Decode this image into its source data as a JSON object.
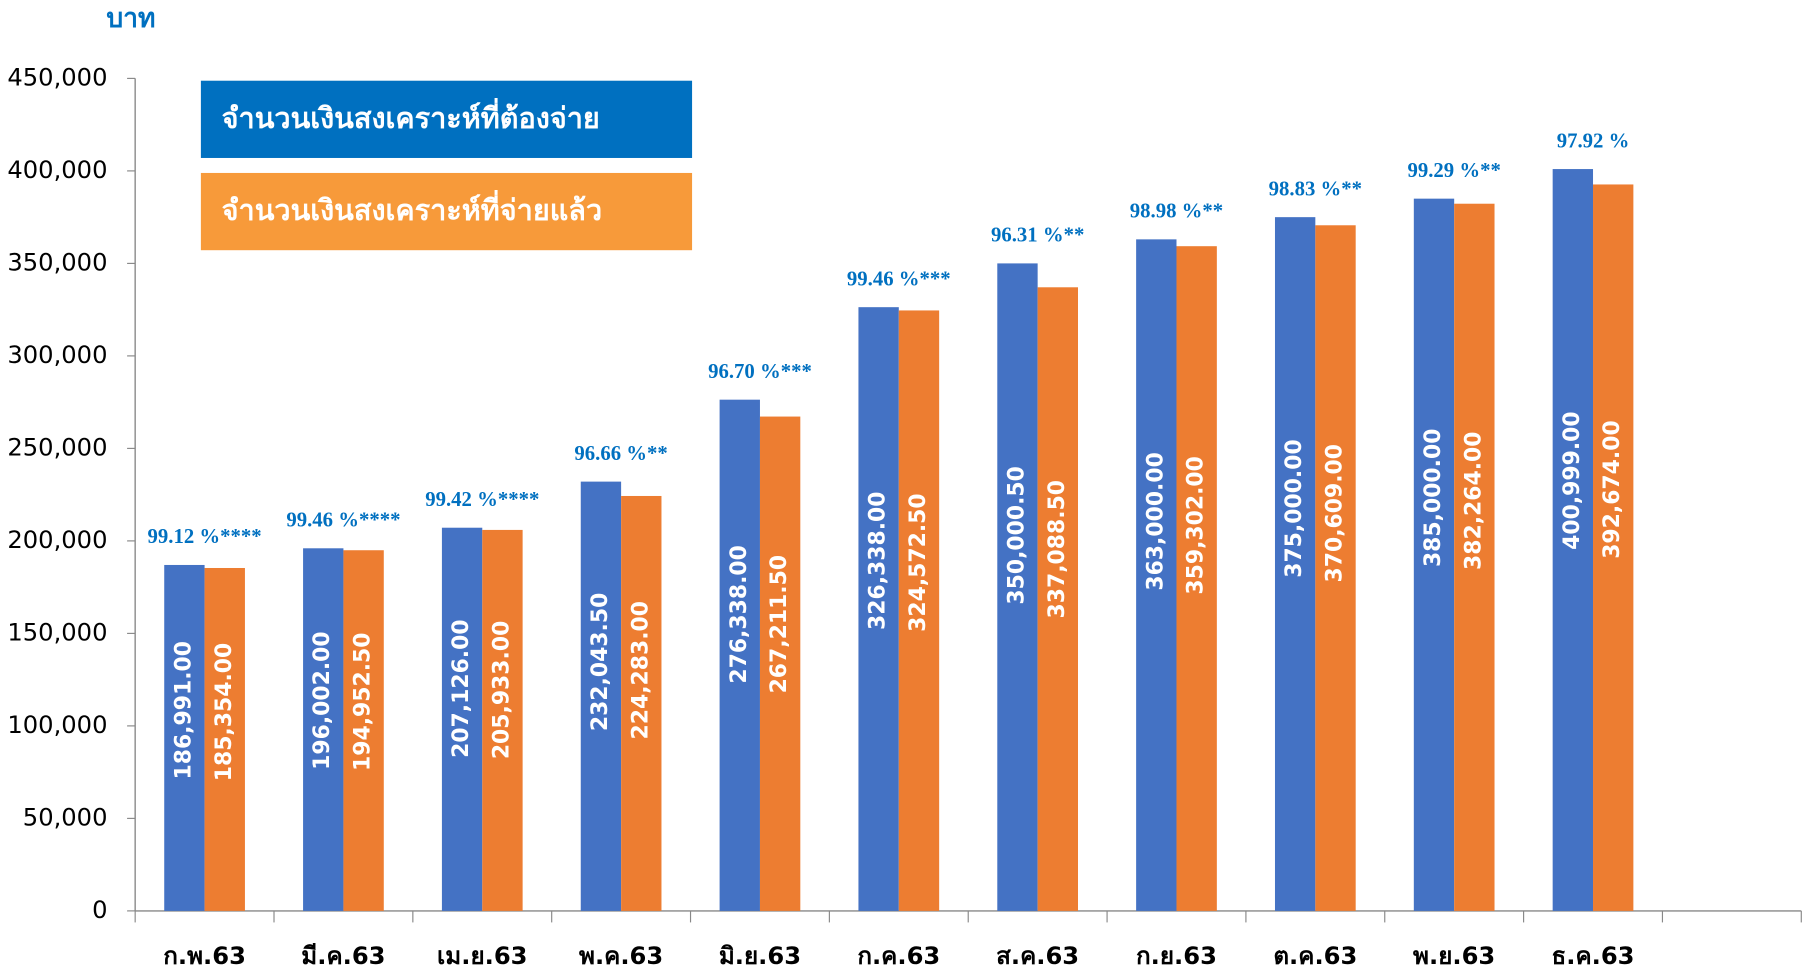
{
  "chart_data": {
    "type": "bar",
    "y_label": "บาท",
    "categories": [
      "ก.พ.63",
      "มี.ค.63",
      "เม.ย.63",
      "พ.ค.63",
      "มิ.ย.63",
      "ก.ค.63",
      "ส.ค.63",
      "ก.ย.63",
      "ต.ค.63",
      "พ.ย.63",
      "ธ.ค.63",
      null
    ],
    "series": [
      {
        "name": "จำนวนเงินสงเคราะห์ที่ต้องจ่าย",
        "color": "#4472c4",
        "values": [
          186991,
          196002,
          207126,
          232043.5,
          276338,
          326338,
          350000.5,
          363000,
          375000,
          385000,
          400999,
          null
        ],
        "value_labels": [
          "186,991.00",
          "196,002.00",
          "207,126.00",
          "232,043.50",
          "276,338.00",
          "326,338.00",
          "350,000.50",
          "363,000.00",
          "375,000.00",
          "385,000.00",
          "400,999.00",
          null
        ]
      },
      {
        "name": "จำนวนเงินสงเคราะห์ที่จ่ายแล้ว",
        "color": "#ed7d31",
        "values": [
          185354,
          194952.5,
          205933,
          224283,
          267211.5,
          324572.5,
          337088.5,
          359302,
          370609,
          382264,
          392674,
          null
        ],
        "value_labels": [
          "185,354.00",
          "194,952.50",
          "205,933.00",
          "224,283.00",
          "267,211.50",
          "324,572.50",
          "337,088.50",
          "359,302.00",
          "370,609.00",
          "382,264.00",
          "392,674.00",
          null
        ]
      }
    ],
    "annotations": [
      "99.12 %****",
      "99.46 %****",
      "99.42 %****",
      "96.66 %**",
      "96.70 %***",
      "99.46 %***",
      "96.31 %**",
      "98.98 %**",
      "98.83 %**",
      "99.29 %**",
      "97.92 %",
      null
    ],
    "annotation_color": "#0070c0",
    "ylim": [
      0,
      450000
    ],
    "yticks": [
      0,
      {
        "value": 50000,
        "label": "50,000"
      },
      {
        "value": 100000,
        "label": "100,000"
      },
      {
        "value": 150000,
        "label": "150,000"
      },
      {
        "value": 200000,
        "label": "200,000"
      },
      {
        "value": 250000,
        "label": "250,000"
      },
      {
        "value": 300000,
        "label": "300,000"
      },
      {
        "value": 350000,
        "label": "350,000"
      },
      {
        "value": 400000,
        "label": "400,000"
      },
      {
        "value": 450000,
        "label": "450,000"
      }
    ],
    "grid": false,
    "legend": "top-left"
  }
}
